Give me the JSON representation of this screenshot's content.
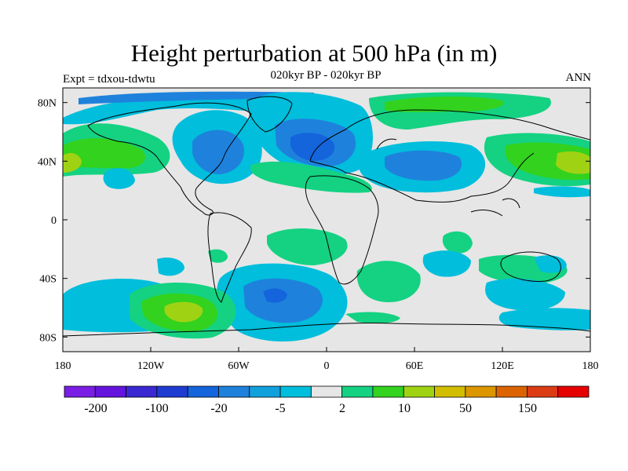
{
  "title": "Height perturbation at 500 hPa (in m)",
  "subtitle": "020kyr BP - 020kyr BP",
  "left_label": "Expt = tdxou-tdwtu",
  "right_label": "ANN",
  "lat_ticks": [
    "80N",
    "40N",
    "0",
    "40S",
    "80S"
  ],
  "lon_ticks": [
    "180",
    "120W",
    "60W",
    "0",
    "60E",
    "120E",
    "180"
  ],
  "colors": {
    "background": "#e6e6e6",
    "land_outline": "#000000",
    "colorbar": [
      "#7a1ee6",
      "#6414dc",
      "#3a28d2",
      "#1e3cd2",
      "#1464dc",
      "#1e82dc",
      "#10a0dc",
      "#00bedc",
      "#e6e6e6",
      "#14d282",
      "#32d21e",
      "#a0d214",
      "#d2be00",
      "#dc9600",
      "#dc6400",
      "#dc3c14",
      "#e60000"
    ]
  },
  "colorbar_labels": [
    "-200",
    "-100",
    "-20",
    "-5",
    "2",
    "10",
    "50",
    "150"
  ]
}
